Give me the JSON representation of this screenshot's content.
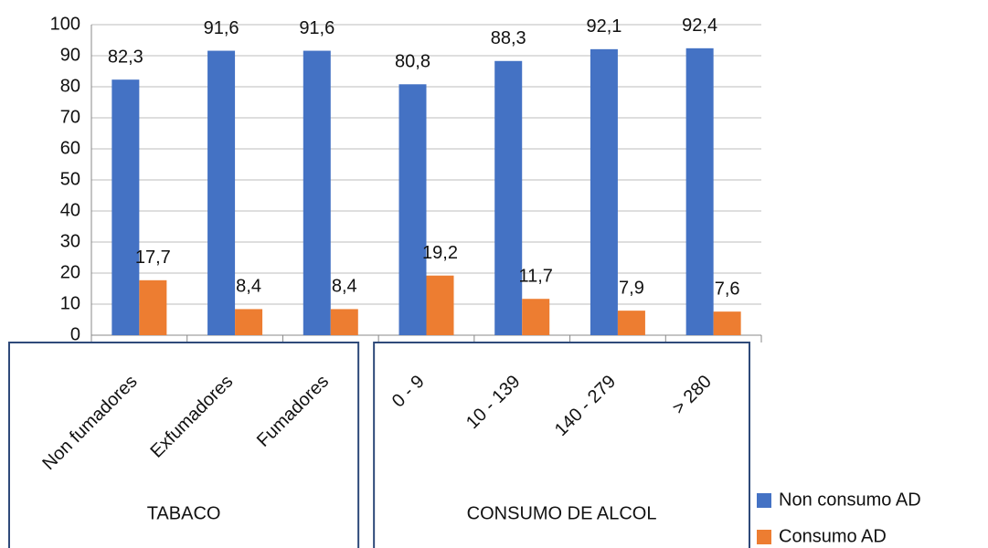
{
  "chart_data": {
    "type": "bar",
    "groups": [
      {
        "label": "TABACO",
        "categories": [
          "Non fumadores",
          "Exfumadores",
          "Fumadores"
        ]
      },
      {
        "label": "CONSUMO DE ALCOL",
        "categories": [
          "0 - 9",
          "10 - 139",
          "140 - 279",
          "> 280"
        ]
      }
    ],
    "series": [
      {
        "name": "Non consumo AD",
        "color": "#4472c4",
        "values": [
          82.3,
          91.6,
          91.6,
          80.8,
          88.3,
          92.1,
          92.4
        ],
        "value_labels": [
          "82,3",
          "91,6",
          "91,6",
          "80,8",
          "88,3",
          "92,1",
          "92,4"
        ]
      },
      {
        "name": "Consumo AD",
        "color": "#ed7d31",
        "values": [
          17.7,
          8.4,
          8.4,
          19.2,
          11.7,
          7.9,
          7.6
        ],
        "value_labels": [
          "17,7",
          "8,4",
          "8,4",
          "19,2",
          "11,7",
          "7,9",
          "7,6"
        ]
      }
    ],
    "ylim": [
      0,
      100
    ],
    "yticks": [
      0,
      10,
      20,
      30,
      40,
      50,
      60,
      70,
      80,
      90,
      100
    ],
    "grid": true
  }
}
